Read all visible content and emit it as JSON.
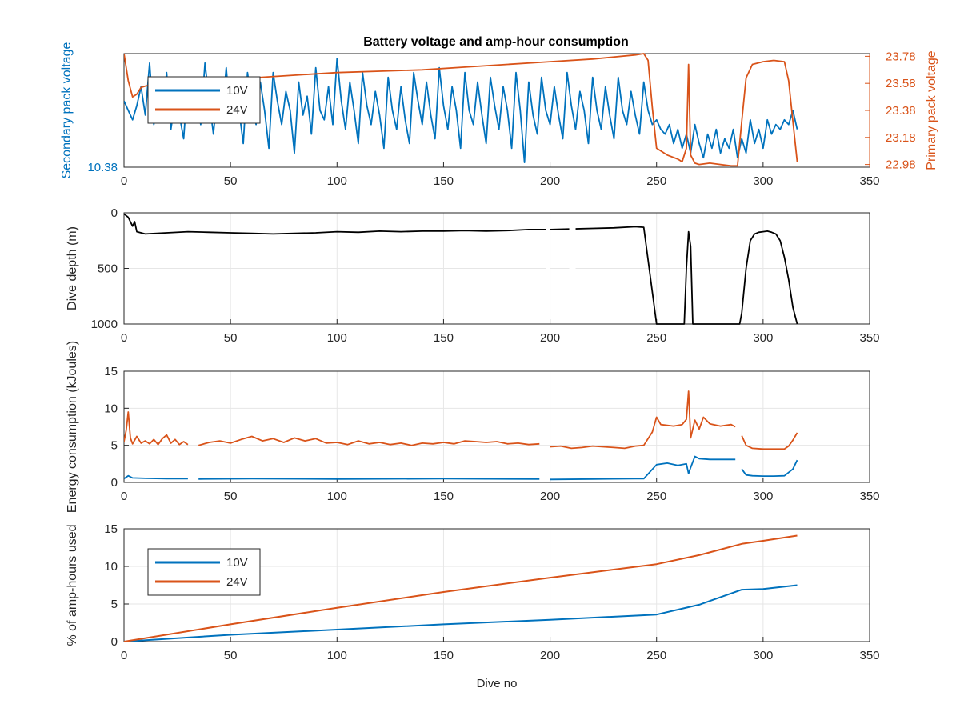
{
  "title": "Battery voltage and amp-hour consumption",
  "colors": {
    "blue": "#0072BD",
    "orange": "#D95319",
    "black": "#000000",
    "axis": "#262626",
    "grid": "#e6e6e6"
  },
  "chart_data": [
    {
      "type": "line",
      "id": "voltage",
      "title": "Battery voltage and amp-hour consumption",
      "xlabel": "",
      "ylabel": "Secondary pack voltage",
      "ylabel_right": "Primary pack voltage",
      "xlim": [
        0,
        350
      ],
      "x_ticks": [
        "0",
        "50",
        "100",
        "150",
        "200",
        "250",
        "300",
        "350"
      ],
      "ylim_left": [
        10.38,
        10.62
      ],
      "y_ticks_left": [
        "10.38"
      ],
      "ylim_right": [
        22.96,
        23.8
      ],
      "y_ticks_right": [
        "22.98",
        "23.18",
        "23.38",
        "23.58",
        "23.78"
      ],
      "legend": {
        "position": "top-left",
        "entries": [
          "10V",
          "24V"
        ]
      },
      "series": [
        {
          "name": "10V",
          "axis": "left",
          "color": "blue",
          "x": [
            0,
            2,
            4,
            6,
            8,
            10,
            12,
            14,
            16,
            18,
            20,
            22,
            24,
            26,
            28,
            30,
            32,
            34,
            36,
            38,
            40,
            42,
            44,
            46,
            48,
            50,
            52,
            54,
            56,
            58,
            60,
            62,
            64,
            66,
            68,
            70,
            72,
            74,
            76,
            78,
            80,
            82,
            84,
            86,
            88,
            90,
            92,
            94,
            96,
            98,
            100,
            102,
            104,
            106,
            108,
            110,
            112,
            114,
            116,
            118,
            120,
            122,
            124,
            126,
            128,
            130,
            132,
            134,
            136,
            138,
            140,
            142,
            144,
            146,
            148,
            150,
            152,
            154,
            156,
            158,
            160,
            162,
            164,
            166,
            168,
            170,
            172,
            174,
            176,
            178,
            180,
            182,
            184,
            186,
            188,
            190,
            192,
            194,
            196,
            198,
            200,
            202,
            204,
            206,
            208,
            210,
            212,
            214,
            216,
            218,
            220,
            222,
            224,
            226,
            228,
            230,
            232,
            234,
            236,
            238,
            240,
            242,
            244,
            246,
            248,
            250,
            252,
            254,
            256,
            258,
            260,
            262,
            264,
            266,
            268,
            270,
            272,
            274,
            276,
            278,
            280,
            282,
            284,
            286,
            288,
            290,
            292,
            294,
            296,
            298,
            300,
            302,
            304,
            306,
            308,
            310,
            312,
            314,
            316
          ],
          "y": [
            10.52,
            10.5,
            10.48,
            10.51,
            10.55,
            10.49,
            10.6,
            10.47,
            10.53,
            10.5,
            10.58,
            10.46,
            10.52,
            10.49,
            10.44,
            10.57,
            10.5,
            10.53,
            10.47,
            10.6,
            10.52,
            10.45,
            10.55,
            10.49,
            10.59,
            10.48,
            10.54,
            10.5,
            10.43,
            10.58,
            10.51,
            10.47,
            10.56,
            10.5,
            10.42,
            10.58,
            10.52,
            10.47,
            10.54,
            10.5,
            10.41,
            10.56,
            10.49,
            10.53,
            10.45,
            10.59,
            10.5,
            10.48,
            10.55,
            10.47,
            10.61,
            10.52,
            10.46,
            10.56,
            10.5,
            10.43,
            10.58,
            10.51,
            10.47,
            10.54,
            10.49,
            10.42,
            10.57,
            10.5,
            10.46,
            10.55,
            10.48,
            10.43,
            10.58,
            10.52,
            10.47,
            10.56,
            10.49,
            10.44,
            10.59,
            10.51,
            10.46,
            10.55,
            10.5,
            10.42,
            10.58,
            10.5,
            10.47,
            10.56,
            10.49,
            10.43,
            10.57,
            10.51,
            10.46,
            10.55,
            10.5,
            10.42,
            10.58,
            10.5,
            10.39,
            10.56,
            10.49,
            10.45,
            10.57,
            10.5,
            10.47,
            10.55,
            10.49,
            10.44,
            10.58,
            10.51,
            10.46,
            10.54,
            10.5,
            10.43,
            10.57,
            10.5,
            10.46,
            10.55,
            10.49,
            10.44,
            10.57,
            10.5,
            10.47,
            10.54,
            10.49,
            10.45,
            10.56,
            10.5,
            10.47,
            10.48,
            10.46,
            10.45,
            10.47,
            10.43,
            10.46,
            10.42,
            10.45,
            10.41,
            10.47,
            10.43,
            10.4,
            10.45,
            10.42,
            10.46,
            10.41,
            10.44,
            10.42,
            10.46,
            10.4,
            10.44,
            10.41,
            10.48,
            10.43,
            10.46,
            10.42,
            10.48,
            10.45,
            10.47,
            10.46,
            10.48,
            10.47,
            10.5,
            10.46
          ],
          "gaps": []
        },
        {
          "name": "24V",
          "axis": "right",
          "color": "orange",
          "x": [
            0,
            2,
            4,
            6,
            8,
            10,
            20,
            40,
            60,
            80,
            100,
            120,
            140,
            160,
            180,
            200,
            220,
            240,
            244,
            246,
            248,
            250,
            255,
            260,
            262,
            264,
            265,
            266,
            268,
            270,
            275,
            280,
            285,
            288,
            290,
            292,
            295,
            300,
            305,
            310,
            312,
            314,
            316
          ],
          "y": [
            23.8,
            23.6,
            23.48,
            23.5,
            23.55,
            23.56,
            23.59,
            23.6,
            23.62,
            23.64,
            23.66,
            23.67,
            23.68,
            23.7,
            23.72,
            23.74,
            23.76,
            23.79,
            23.8,
            23.75,
            23.4,
            23.1,
            23.05,
            23.02,
            23.0,
            23.1,
            23.72,
            23.05,
            22.99,
            22.98,
            22.99,
            22.98,
            22.97,
            22.97,
            23.3,
            23.62,
            23.72,
            23.74,
            23.75,
            23.74,
            23.6,
            23.3,
            23.0
          ],
          "gaps": []
        }
      ]
    },
    {
      "type": "line",
      "id": "depth",
      "xlabel": "",
      "ylabel": "Dive depth (m)",
      "xlim": [
        0,
        350
      ],
      "x_ticks": [
        "0",
        "50",
        "100",
        "150",
        "200",
        "250",
        "300",
        "350"
      ],
      "ylim": [
        0,
        1000
      ],
      "reversed_y": true,
      "y_ticks": [
        "0",
        "500",
        "1000"
      ],
      "series": [
        {
          "name": "",
          "color": "black",
          "x": [
            0,
            2,
            4,
            5,
            6,
            10,
            20,
            30,
            40,
            50,
            60,
            70,
            80,
            90,
            100,
            110,
            120,
            130,
            140,
            150,
            160,
            170,
            180,
            190,
            200,
            210,
            220,
            230,
            240,
            244,
            250,
            252,
            255,
            260,
            263,
            264,
            265,
            266,
            267,
            268,
            270,
            275,
            280,
            285,
            289,
            290,
            292,
            294,
            296,
            298,
            300,
            302,
            304,
            306,
            308,
            310,
            312,
            314,
            316
          ],
          "y": [
            10,
            40,
            120,
            80,
            170,
            190,
            180,
            170,
            175,
            180,
            185,
            190,
            185,
            180,
            170,
            175,
            165,
            170,
            165,
            165,
            160,
            165,
            160,
            150,
            150,
            145,
            140,
            135,
            125,
            130,
            1000,
            1000,
            1000,
            1000,
            1000,
            500,
            170,
            300,
            1000,
            1000,
            1000,
            1000,
            1000,
            1000,
            1000,
            900,
            500,
            250,
            190,
            175,
            170,
            165,
            175,
            190,
            250,
            400,
            600,
            850,
            1000
          ],
          "gaps": [
            [
              209,
              212
            ],
            [
              198,
              200
            ]
          ]
        }
      ]
    },
    {
      "type": "line",
      "id": "energy",
      "xlabel": "",
      "ylabel": "Energy consumption (kJoules)",
      "xlim": [
        0,
        350
      ],
      "x_ticks": [
        "0",
        "50",
        "100",
        "150",
        "200",
        "250",
        "300",
        "350"
      ],
      "ylim": [
        0,
        15
      ],
      "y_ticks": [
        "0",
        "5",
        "10",
        "15"
      ],
      "series": [
        {
          "name": "24V",
          "color": "orange",
          "x": [
            0,
            1,
            2,
            3,
            4,
            6,
            8,
            10,
            12,
            14,
            16,
            18,
            20,
            22,
            24,
            26,
            28,
            30
          ],
          "y": [
            5.5,
            7,
            9.5,
            6,
            5.2,
            6.2,
            5.3,
            5.6,
            5.2,
            5.8,
            5.1,
            5.9,
            6.4,
            5.3,
            5.8,
            5.1,
            5.5,
            5.1
          ],
          "gaps": []
        },
        {
          "name": "24V",
          "color": "orange",
          "x": [
            35,
            40,
            45,
            50,
            55,
            60,
            65,
            70,
            75,
            80,
            85,
            90,
            95,
            100,
            105,
            110,
            115,
            120,
            125,
            130,
            135,
            140,
            145,
            150,
            155,
            160,
            165,
            170,
            175,
            180,
            185,
            190,
            195
          ],
          "y": [
            5.0,
            5.4,
            5.6,
            5.3,
            5.8,
            6.2,
            5.6,
            5.9,
            5.4,
            6.0,
            5.6,
            5.9,
            5.3,
            5.4,
            5.1,
            5.6,
            5.2,
            5.4,
            5.1,
            5.3,
            5.0,
            5.3,
            5.2,
            5.4,
            5.2,
            5.6,
            5.5,
            5.4,
            5.5,
            5.2,
            5.3,
            5.1,
            5.2
          ],
          "gaps": []
        },
        {
          "name": "24V",
          "color": "orange",
          "x": [
            200,
            205,
            210,
            215,
            220,
            225,
            230,
            235,
            240,
            244,
            248,
            250,
            252,
            255,
            258,
            262,
            264,
            265,
            266,
            268,
            270,
            272,
            275,
            280,
            285,
            287
          ],
          "y": [
            4.8,
            4.9,
            4.6,
            4.7,
            4.9,
            4.8,
            4.7,
            4.6,
            4.9,
            5.0,
            6.8,
            8.8,
            7.8,
            7.7,
            7.6,
            7.8,
            8.5,
            12.3,
            6.0,
            8.4,
            7.2,
            8.8,
            7.9,
            7.6,
            7.8,
            7.5
          ],
          "gaps": []
        },
        {
          "name": "24V",
          "color": "orange",
          "x": [
            290,
            292,
            295,
            300,
            305,
            310,
            312,
            314,
            316
          ],
          "y": [
            6.3,
            5.0,
            4.6,
            4.5,
            4.5,
            4.5,
            4.9,
            5.7,
            6.7
          ],
          "gaps": []
        },
        {
          "name": "10V",
          "color": "blue",
          "x": [
            0,
            2,
            4,
            10,
            20,
            30
          ],
          "y": [
            0.5,
            0.9,
            0.6,
            0.55,
            0.5,
            0.5
          ],
          "gaps": []
        },
        {
          "name": "10V",
          "color": "blue",
          "x": [
            35,
            60,
            100,
            150,
            195
          ],
          "y": [
            0.45,
            0.5,
            0.45,
            0.5,
            0.45
          ],
          "gaps": []
        },
        {
          "name": "10V",
          "color": "blue",
          "x": [
            200,
            220,
            240,
            244,
            250,
            255,
            260,
            264,
            265,
            266,
            268,
            270,
            275,
            287
          ],
          "y": [
            0.4,
            0.45,
            0.5,
            0.5,
            2.4,
            2.6,
            2.3,
            2.5,
            1.2,
            2.0,
            3.5,
            3.2,
            3.1,
            3.1
          ],
          "gaps": []
        },
        {
          "name": "10V",
          "color": "blue",
          "x": [
            290,
            292,
            295,
            300,
            305,
            310,
            314,
            316
          ],
          "y": [
            1.8,
            1.0,
            0.9,
            0.85,
            0.85,
            0.9,
            1.8,
            3.0
          ],
          "gaps": []
        }
      ]
    },
    {
      "type": "line",
      "id": "amphours",
      "xlabel": "Dive no",
      "ylabel": "% of amp-hours used",
      "xlim": [
        0,
        350
      ],
      "x_ticks": [
        "0",
        "50",
        "100",
        "150",
        "200",
        "250",
        "300",
        "350"
      ],
      "ylim": [
        0,
        15
      ],
      "y_ticks": [
        "0",
        "5",
        "10",
        "15"
      ],
      "legend": {
        "position": "top-left",
        "entries": [
          "10V",
          "24V"
        ]
      },
      "series": [
        {
          "name": "10V",
          "color": "blue",
          "x": [
            0,
            50,
            100,
            150,
            200,
            250,
            270,
            290,
            300,
            316
          ],
          "y": [
            0,
            0.9,
            1.6,
            2.3,
            2.9,
            3.6,
            4.9,
            6.9,
            7.0,
            7.5
          ],
          "gaps": []
        },
        {
          "name": "24V",
          "color": "orange",
          "x": [
            0,
            50,
            100,
            150,
            200,
            250,
            270,
            290,
            300,
            316
          ],
          "y": [
            0,
            2.3,
            4.5,
            6.6,
            8.5,
            10.3,
            11.5,
            13.0,
            13.4,
            14.1
          ],
          "gaps": []
        }
      ]
    }
  ]
}
